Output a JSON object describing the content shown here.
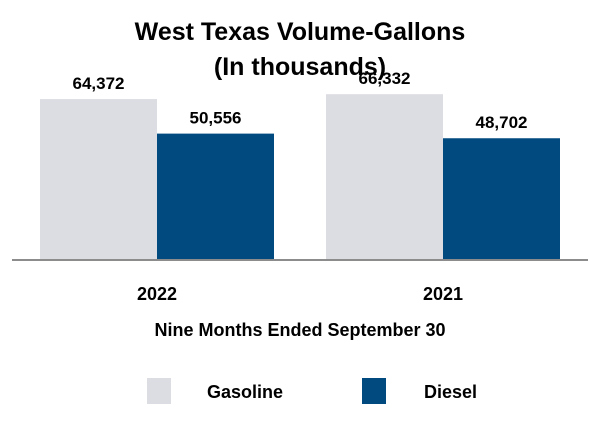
{
  "chart_data": {
    "type": "bar",
    "title_lines": [
      "West Texas Volume-Gallons",
      "(In thousands)"
    ],
    "xlabel": "Nine Months Ended September 30",
    "ylabel": "",
    "categories": [
      "2022",
      "2021"
    ],
    "series": [
      {
        "name": "Gasoline",
        "values": [
          64372,
          66332
        ],
        "labels": [
          "64,372",
          "66,332"
        ],
        "color": "#dcdde2"
      },
      {
        "name": "Diesel",
        "values": [
          50556,
          48702
        ],
        "labels": [
          "50,556",
          "48,702"
        ],
        "color": "#004a80"
      }
    ],
    "ylim": [
      0,
      100000
    ],
    "grid": false,
    "legend_position": "bottom"
  },
  "colors": {
    "gasoline": "#dcdde2",
    "diesel": "#004a80",
    "axis": "#8c8c8c"
  }
}
